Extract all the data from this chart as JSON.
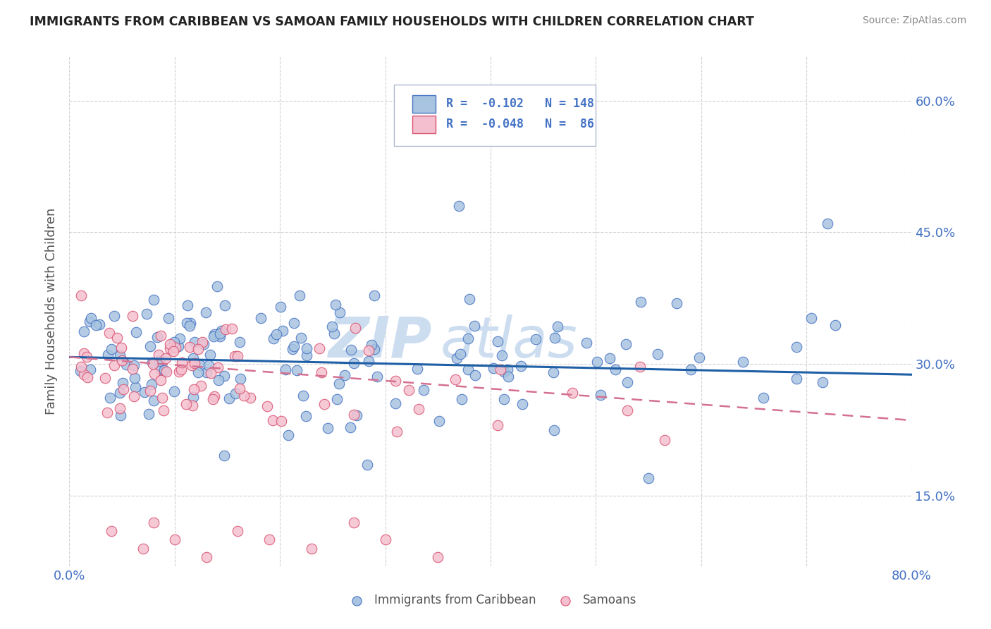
{
  "title": "IMMIGRANTS FROM CARIBBEAN VS SAMOAN FAMILY HOUSEHOLDS WITH CHILDREN CORRELATION CHART",
  "source": "Source: ZipAtlas.com",
  "ylabel": "Family Households with Children",
  "xlim": [
    0.0,
    0.8
  ],
  "ylim": [
    0.07,
    0.65
  ],
  "xtick_positions": [
    0.0,
    0.1,
    0.2,
    0.3,
    0.4,
    0.5,
    0.6,
    0.7,
    0.8
  ],
  "xticklabels": [
    "0.0%",
    "",
    "",
    "",
    "",
    "",
    "",
    "",
    "80.0%"
  ],
  "ytick_positions": [
    0.15,
    0.3,
    0.45,
    0.6
  ],
  "ytick_labels": [
    "15.0%",
    "30.0%",
    "45.0%",
    "60.0%"
  ],
  "scatter1_color": "#a8c4e0",
  "scatter1_edge": "#4472c4",
  "scatter2_color": "#f4c0cf",
  "scatter2_edge": "#d94f6e",
  "line1_color": "#1f5fa6",
  "line2_color": "#d47090",
  "watermark_text": "ZIPAtlas",
  "watermark_color": "#ddeeff",
  "background_color": "#ffffff",
  "grid_color": "#cccccc",
  "title_color": "#222222",
  "axis_label_color": "#555555",
  "tick_color": "#4472c4",
  "series1_name": "Immigrants from Caribbean",
  "series2_name": "Samoans",
  "legend_box_color": "#f0f4ff",
  "legend_border_color": "#b0b8d0",
  "legend_text_color": "#4472c4",
  "legend1_text": "R =  -0.102   N = 148",
  "legend2_text": "R =  -0.048   N =  86"
}
